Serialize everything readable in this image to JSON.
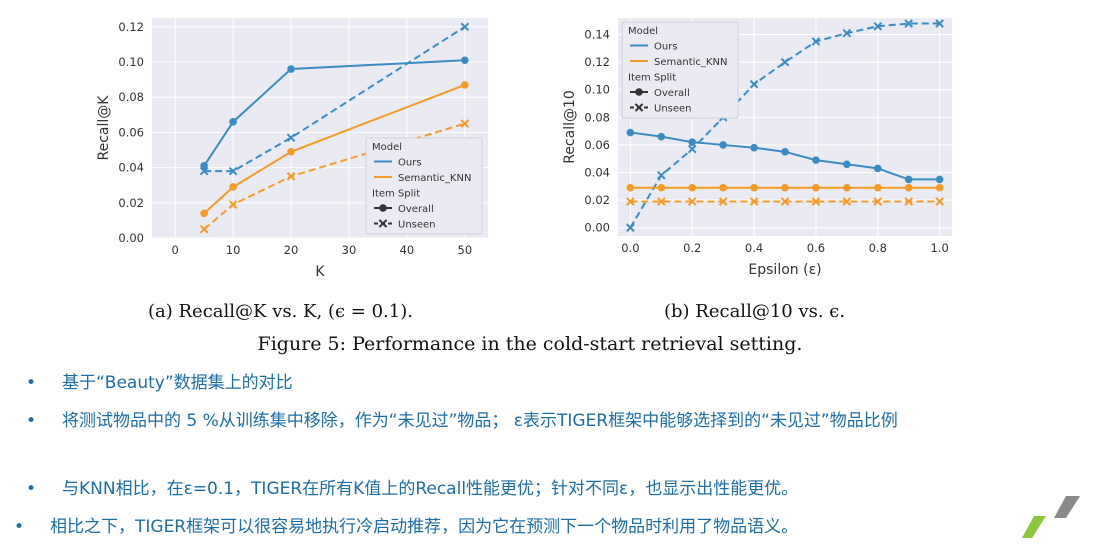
{
  "chart_data": [
    {
      "type": "line",
      "xlabel": "K",
      "ylabel": "Recall@K",
      "xlim": [
        -4,
        54
      ],
      "ylim": [
        0,
        0.125
      ],
      "xticks": [
        0,
        10,
        20,
        30,
        40,
        50
      ],
      "yticks": [
        0.0,
        0.02,
        0.04,
        0.06,
        0.08,
        0.1,
        0.12
      ],
      "ytick_labels": [
        "0.00",
        "0.02",
        "0.04",
        "0.06",
        "0.08",
        "0.10",
        "0.12"
      ],
      "grid": true,
      "legend_position": "lower-right",
      "x": [
        5,
        10,
        20,
        50
      ],
      "series": [
        {
          "model": "Ours",
          "split": "Overall",
          "color": "#3a8cc4",
          "style": "solid",
          "marker": "o",
          "values": [
            0.041,
            0.066,
            0.096,
            0.101
          ]
        },
        {
          "model": "Ours",
          "split": "Unseen",
          "color": "#3a8cc4",
          "style": "dashed",
          "marker": "x",
          "values": [
            0.038,
            0.038,
            0.057,
            0.12
          ]
        },
        {
          "model": "Semantic_KNN",
          "split": "Overall",
          "color": "#f59b26",
          "style": "solid",
          "marker": "o",
          "values": [
            0.014,
            0.029,
            0.049,
            0.087
          ]
        },
        {
          "model": "Semantic_KNN",
          "split": "Unseen",
          "color": "#f59b26",
          "style": "dashed",
          "marker": "x",
          "values": [
            0.005,
            0.019,
            0.035,
            0.065
          ]
        }
      ]
    },
    {
      "type": "line",
      "xlabel": "Epsilon (ε)",
      "ylabel": "Recall@10",
      "xlim": [
        -0.04,
        1.04
      ],
      "ylim": [
        -0.006,
        0.152
      ],
      "xticks": [
        0.0,
        0.2,
        0.4,
        0.6,
        0.8,
        1.0
      ],
      "xtick_labels": [
        "0.0",
        "0.2",
        "0.4",
        "0.6",
        "0.8",
        "1.0"
      ],
      "yticks": [
        0.0,
        0.02,
        0.04,
        0.06,
        0.08,
        0.1,
        0.12,
        0.14
      ],
      "ytick_labels": [
        "0.00",
        "0.02",
        "0.04",
        "0.06",
        "0.08",
        "0.10",
        "0.12",
        "0.14"
      ],
      "grid": true,
      "legend_position": "top-left",
      "x": [
        0.0,
        0.1,
        0.2,
        0.3,
        0.4,
        0.5,
        0.6,
        0.7,
        0.8,
        0.9,
        1.0
      ],
      "series": [
        {
          "model": "Ours",
          "split": "Overall",
          "color": "#3a8cc4",
          "style": "solid",
          "marker": "o",
          "values": [
            0.069,
            0.066,
            0.062,
            0.06,
            0.058,
            0.055,
            0.049,
            0.046,
            0.043,
            0.035,
            0.035
          ]
        },
        {
          "model": "Ours",
          "split": "Unseen",
          "color": "#3a8cc4",
          "style": "dashed",
          "marker": "x",
          "values": [
            0.0,
            0.038,
            0.057,
            0.08,
            0.104,
            0.12,
            0.135,
            0.141,
            0.146,
            0.148,
            0.148
          ]
        },
        {
          "model": "Semantic_KNN",
          "split": "Overall",
          "color": "#f59b26",
          "style": "solid",
          "marker": "o",
          "values": [
            0.029,
            0.029,
            0.029,
            0.029,
            0.029,
            0.029,
            0.029,
            0.029,
            0.029,
            0.029,
            0.029
          ]
        },
        {
          "model": "Semantic_KNN",
          "split": "Unseen",
          "color": "#f59b26",
          "style": "dashed",
          "marker": "x",
          "values": [
            0.019,
            0.019,
            0.019,
            0.019,
            0.019,
            0.019,
            0.019,
            0.019,
            0.019,
            0.019,
            0.019
          ]
        }
      ]
    }
  ],
  "legend": {
    "model_title": "Model",
    "model_entries": [
      "Ours",
      "Semantic_KNN"
    ],
    "split_title": "Item Split",
    "split_entries": [
      "Overall",
      "Unseen"
    ]
  },
  "captions": {
    "sub_a": "(a) Recall@K vs. K, (ϵ = 0.1).",
    "sub_b": "(b) Recall@10 vs. ϵ.",
    "figure": "Figure 5: Performance in the cold-start retrieval setting."
  },
  "bullets": [
    "基于“Beauty”数据集上的对比",
    "将测试物品中的 5 %从训练集中移除，作为“未见过”物品； ε表示TIGER框架中能够选择到的“未见过”物品比例",
    "与KNN相比，在ε=0.1，TIGER在所有K值上的Recall性能更优；针对不同ε，也显示出性能更优。",
    "相比之下，TIGER框架可以很容易地执行冷启动推荐，因为它在预测下一个物品时利用了物品语义。"
  ],
  "bullet_symbol": "•",
  "colors": {
    "ours": "#3a8cc4",
    "knn": "#f59b26",
    "bullet_text": "#1c6ea8",
    "logo_green": "#8cc63f",
    "logo_gray": "#8a8a8a"
  }
}
